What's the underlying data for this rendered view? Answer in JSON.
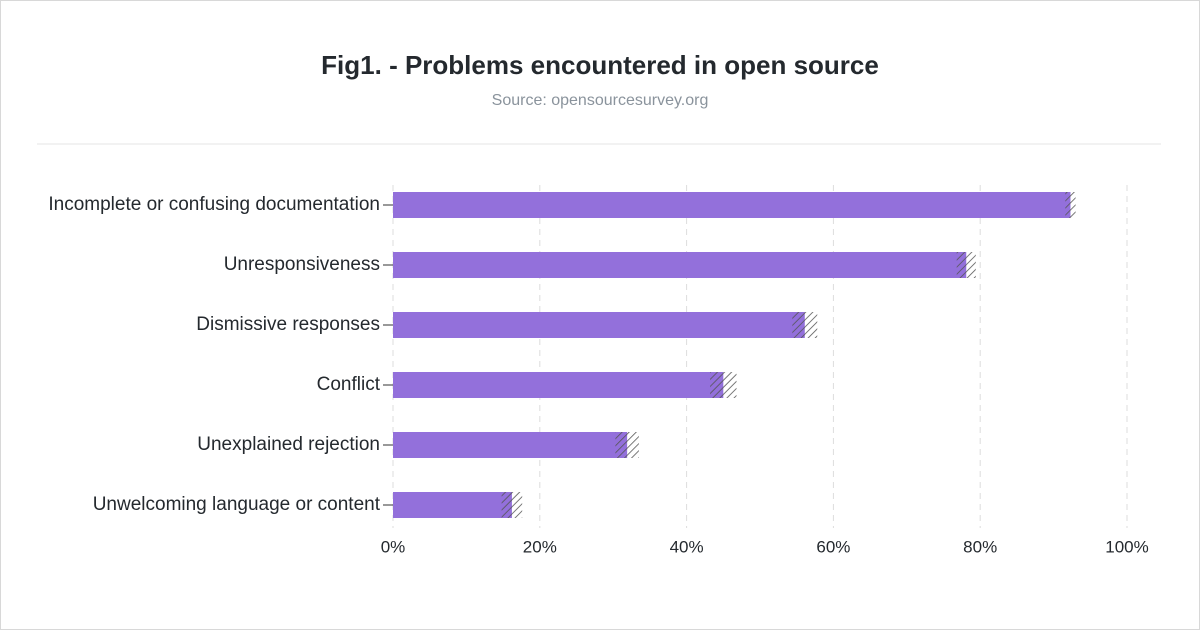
{
  "chart_data": {
    "type": "hbar-error",
    "title": "Fig1. - Problems encountered in open source",
    "subtitle": "Source: opensourcesurvey.org",
    "categories": [
      "Incomplete or confusing documentation",
      "Unresponsiveness",
      "Dismissive responses",
      "Conflict",
      "Unexplained rejection",
      "Unwelcoming language or content"
    ],
    "values": [
      92.3,
      78.1,
      56.1,
      45.0,
      31.9,
      16.2
    ],
    "errors": [
      0.7,
      1.3,
      1.7,
      1.8,
      1.6,
      1.4
    ],
    "color": "#9370db",
    "xlim": [
      0,
      100
    ],
    "xticks": [
      {
        "value": 0,
        "label": "0%"
      },
      {
        "value": 20,
        "label": "20%"
      },
      {
        "value": 40,
        "label": "40%"
      },
      {
        "value": 60,
        "label": "60%"
      },
      {
        "value": 80,
        "label": "80%"
      },
      {
        "value": 100,
        "label": "100%"
      }
    ],
    "grid": true
  }
}
